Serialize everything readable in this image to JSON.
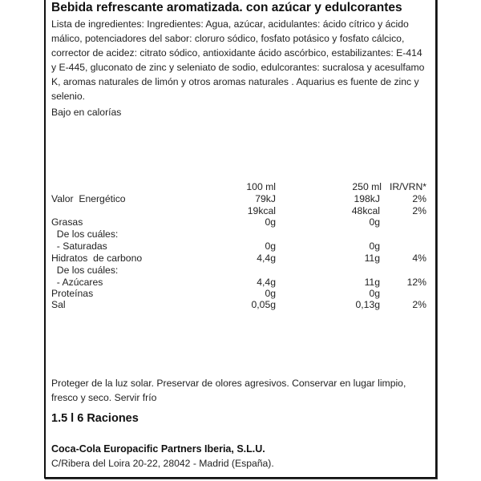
{
  "title": "Bebida refrescante aromatizada. con azúcar y edulcorantes",
  "ingredients": "Lista de ingredientes: Ingredientes: Agua, azúcar, acidulantes: ácido cítrico y ácido málico, potenciadores del sabor: cloruro sódico, fosfato potásico y fosfato cálcico, corrector de acidez: citrato sódico, antioxidante ácido ascórbico, estabilizantes: E-414 y E-445, gluconato de zinc y seleniato de sodio, edulcorantes: sucralosa y acesulfamo K, aromas naturales de limón y otros aromas naturales . Aquarius es fuente de zinc y selenio.",
  "claim": "Bajo en calorías",
  "nutrition": {
    "headers": [
      "",
      "100 ml",
      "250 ml",
      "IR/VRN*"
    ],
    "rows": [
      [
        "Valor  Energético",
        "79kJ",
        "198kJ",
        "2%"
      ],
      [
        "",
        "19kcal",
        "48kcal",
        "2%"
      ],
      [
        "Grasas",
        "0g",
        "0g",
        ""
      ],
      [
        "  De los cuáles:",
        "",
        "",
        ""
      ],
      [
        "  - Saturadas",
        "0g",
        "0g",
        ""
      ],
      [
        "Hidratos  de carbono",
        "4,4g",
        "11g",
        "4%"
      ],
      [
        "  De los cuáles:",
        "",
        "",
        ""
      ],
      [
        "  - Azúcares",
        "4,4g",
        "11g",
        "12%"
      ],
      [
        "Proteínas",
        "0g",
        "0g",
        ""
      ],
      [
        "Sal",
        "0,05g",
        "0,13g",
        "2%"
      ]
    ]
  },
  "storage": "Proteger de la luz solar. Preservar de olores agresivos. Conservar en lugar limpio, fresco y seco. Servir frío",
  "size": "1.5 l  6 Raciones",
  "company": "Coca-Cola Europacific Partners Iberia, S.L.U.",
  "address": "C/Ribera del Loira 20-22, 28042 - Madrid (España)."
}
